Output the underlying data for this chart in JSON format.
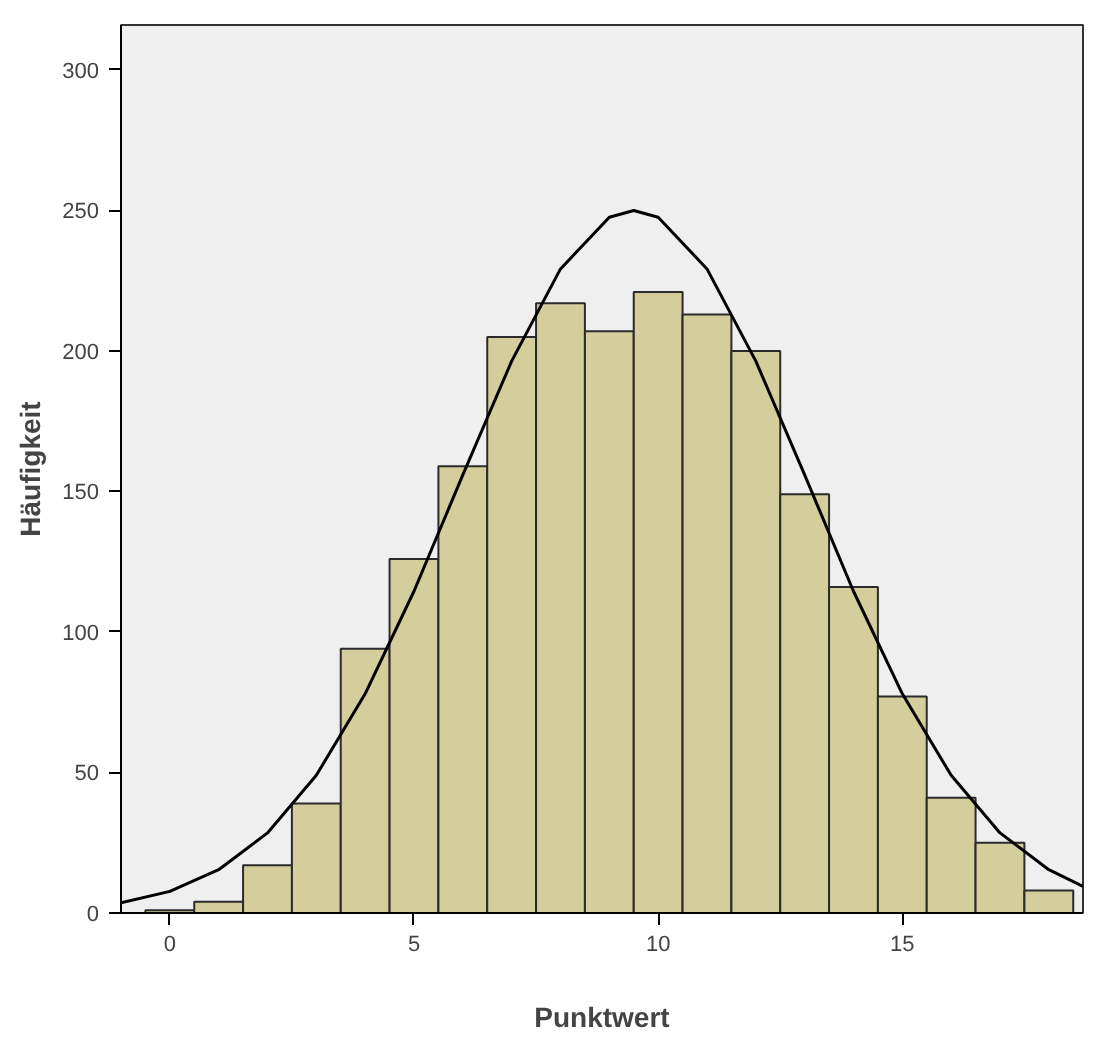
{
  "chart_data": {
    "type": "histogram",
    "xlabel": "Punktwert",
    "ylabel": "Häufigkeit",
    "bins": [
      -0.5,
      0.5,
      1.5,
      2.5,
      3.5,
      4.5,
      5.5,
      6.5,
      7.5,
      8.5,
      9.5,
      10.5,
      11.5,
      12.5,
      13.5,
      14.5,
      15.5,
      16.5,
      17.5,
      18.5
    ],
    "values": [
      1,
      4,
      17,
      39,
      94,
      126,
      159,
      205,
      217,
      207,
      221,
      213,
      200,
      149,
      116,
      77,
      41,
      25,
      8
    ],
    "color": "#d3ce9c",
    "series": [
      {
        "type": "line",
        "color": "#000000",
        "x": [
          -1,
          0,
          1,
          2,
          3,
          4,
          5,
          6,
          7,
          8,
          9,
          9.5,
          10,
          11,
          12,
          13,
          14,
          15,
          16,
          17,
          18,
          18.7
        ],
        "values": [
          3.6,
          7.7,
          15.4,
          28.5,
          49,
          78,
          114.5,
          155.9,
          196.4,
          229.2,
          247.6,
          250,
          247.6,
          229.2,
          196.4,
          155.9,
          114.5,
          78,
          49,
          28.5,
          15.4,
          9.5
        ]
      }
    ],
    "xlim": [
      -1,
      18.7
    ],
    "ylim": [
      0,
      316
    ],
    "xticks": [
      0,
      5,
      10,
      15
    ],
    "yticks": [
      0,
      50,
      100,
      150,
      200,
      250,
      300
    ],
    "grid": false
  }
}
